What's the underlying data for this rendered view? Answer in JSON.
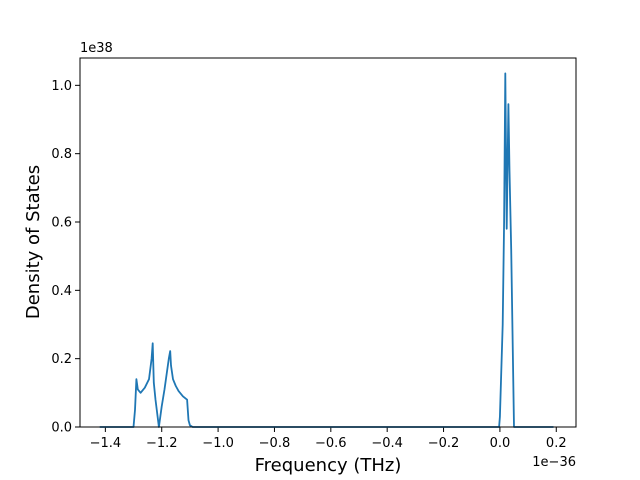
{
  "chart_data": {
    "type": "line",
    "xlabel": "Frequency (THz)",
    "ylabel": "Density of States",
    "x_offset_label": "1e−36",
    "y_offset_label": "1e38",
    "xlim": [
      -1.49,
      0.27
    ],
    "ylim": [
      0,
      1.08
    ],
    "x_ticks": [
      -1.4,
      -1.2,
      -1.0,
      -0.8,
      -0.6,
      -0.4,
      -0.2,
      0.0,
      0.2
    ],
    "x_tick_labels": [
      "−1.4",
      "−1.2",
      "−1.0",
      "−0.8",
      "−0.6",
      "−0.4",
      "−0.2",
      "0.0",
      "0.2"
    ],
    "y_ticks": [
      0.0,
      0.2,
      0.4,
      0.6,
      0.8,
      1.0
    ],
    "y_tick_labels": [
      "0.0",
      "0.2",
      "0.4",
      "0.6",
      "0.8",
      "1.0"
    ],
    "grid": false,
    "colors": {
      "line": "#1f77b4",
      "axes": "#000000",
      "background": "#ffffff"
    },
    "series": [
      {
        "x": [
          -1.42,
          -1.3,
          -1.295,
          -1.29,
          -1.285,
          -1.275,
          -1.26,
          -1.245,
          -1.236,
          -1.232,
          -1.228,
          -1.222,
          -1.21,
          -1.2,
          -1.19,
          -1.175,
          -1.17,
          -1.167,
          -1.16,
          -1.15,
          -1.14,
          -1.125,
          -1.11,
          -1.105,
          -1.1,
          -1.09,
          -0.5,
          -0.003,
          0.0,
          0.01,
          0.015,
          0.019,
          0.024,
          0.03,
          0.034,
          0.04,
          0.05,
          0.06,
          0.1,
          0.19
        ],
        "y": [
          0.0,
          0.0,
          0.05,
          0.14,
          0.11,
          0.1,
          0.115,
          0.14,
          0.2,
          0.245,
          0.13,
          0.08,
          0.0,
          0.06,
          0.11,
          0.2,
          0.222,
          0.18,
          0.14,
          0.12,
          0.105,
          0.09,
          0.08,
          0.02,
          0.005,
          0.0,
          0.0,
          0.0,
          0.03,
          0.3,
          0.6,
          1.035,
          0.58,
          0.945,
          0.75,
          0.52,
          0.0,
          0.0,
          0.0,
          0.0
        ]
      }
    ]
  }
}
